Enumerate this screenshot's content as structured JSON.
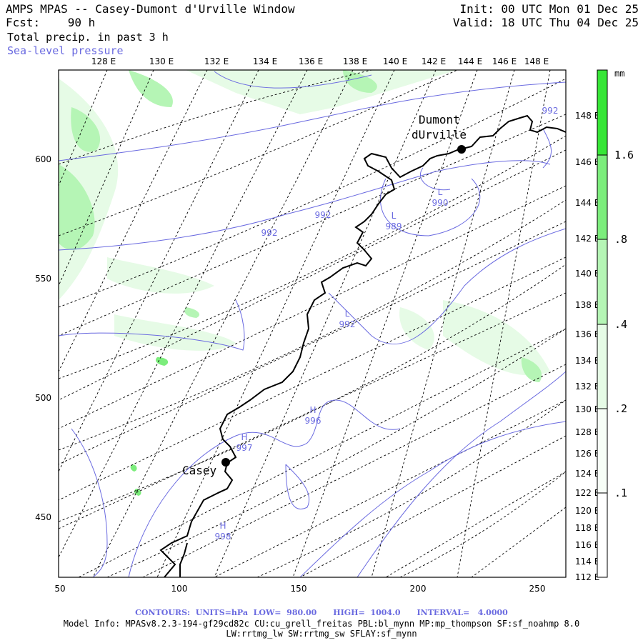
{
  "header": {
    "title": "AMPS MPAS -- Casey-Dumont d'Urville Window",
    "fcst": "Fcst:    90 h",
    "field": "Total precip. in past 3 h",
    "overlay": "Sea-level pressure",
    "init": "Init: 00 UTC Mon 01 Dec 25",
    "valid": "Valid: 18 UTC Thu 04 Dec 25"
  },
  "lon_top_labels": [
    "128 E",
    "130 E",
    "132 E",
    "134 E",
    "136 E",
    "138 E",
    "140 E",
    "142 E",
    "144 E",
    "146 E",
    "148 E"
  ],
  "lon_right_labels": [
    "148 E",
    "146 E",
    "144 E",
    "142 E",
    "140 E",
    "138 E",
    "136 E",
    "134 E",
    "132 E",
    "130 E",
    "128 E",
    "126 E",
    "124 E",
    "122 E",
    "120 E",
    "118 E",
    "116 E",
    "114 E",
    "112 E"
  ],
  "x_axis_labels": [
    "50",
    "100",
    "150",
    "200",
    "250"
  ],
  "y_axis_labels": [
    "600",
    "550",
    "500",
    "450"
  ],
  "colorbar": {
    "unit": "mm",
    "labels": [
      "1.6",
      ".8",
      ".4",
      ".2",
      ".1"
    ],
    "colors": [
      "#36e636",
      "#7ced7c",
      "#b5f5b5",
      "#e6fbe6",
      "#ffffff"
    ]
  },
  "stations": [
    {
      "name": "Casey"
    },
    {
      "name": "Dumont"
    },
    {
      "name": "dUrville"
    }
  ],
  "pressure_labels": [
    {
      "mark": "",
      "value": "992"
    },
    {
      "mark": "",
      "value": "992"
    },
    {
      "mark": "",
      "value": "992"
    },
    {
      "mark": "L",
      "value": "990"
    },
    {
      "mark": "L",
      "value": "989"
    },
    {
      "mark": "L",
      "value": "992"
    },
    {
      "mark": "H",
      "value": "996"
    },
    {
      "mark": "H",
      "value": "997"
    },
    {
      "mark": "H",
      "value": "998"
    }
  ],
  "footer": {
    "contours": "CONTOURS:  UNITS=hPa  LOW=  980.00      HIGH=  1004.0      INTERVAL=   4.0000",
    "model_info": "Model Info: MPASv8.2.3-194-gf29cd82c CU:cu_grell_freitas PBL:bl_mynn MP:mp_thompson SF:sf_noahmp 8.0",
    "model_info2": "LW:rrtmg_lw SW:rrtmg_sw SFLAY:sf_mynn"
  }
}
